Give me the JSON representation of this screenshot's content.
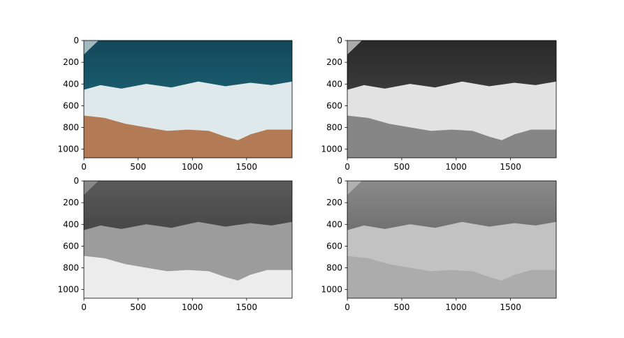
{
  "chart_data": [
    {
      "type": "image",
      "xlim": [
        -0.5,
        1919.5
      ],
      "ylim": [
        1079.5,
        -0.5
      ],
      "xticks": [
        0,
        500,
        1000,
        1500
      ],
      "yticks": [
        0,
        200,
        400,
        600,
        800,
        1000
      ],
      "colors": [
        "#14485a",
        "#1f7585",
        "#dfe9ec",
        "#b27b56"
      ]
    },
    {
      "type": "image",
      "xlim": [
        -0.5,
        1919.5
      ],
      "ylim": [
        1079.5,
        -0.5
      ],
      "xticks": [
        0,
        500,
        1000,
        1500
      ],
      "yticks": [
        0,
        200,
        400,
        600,
        800,
        1000
      ],
      "colors": [
        "#2a2a2a",
        "#505050",
        "#e2e2e2",
        "#868686"
      ]
    },
    {
      "type": "image",
      "xlim": [
        -0.5,
        1919.5
      ],
      "ylim": [
        1079.5,
        -0.5
      ],
      "xticks": [
        0,
        500,
        1000,
        1500
      ],
      "yticks": [
        0,
        200,
        400,
        600,
        800,
        1000
      ],
      "colors": [
        "#5a5a5a",
        "#2e2e2e",
        "#9c9c9c",
        "#ececec"
      ]
    },
    {
      "type": "image",
      "xlim": [
        -0.5,
        1919.5
      ],
      "ylim": [
        1079.5,
        -0.5
      ],
      "xticks": [
        0,
        500,
        1000,
        1500
      ],
      "yticks": [
        0,
        200,
        400,
        600,
        800,
        1000
      ],
      "colors": [
        "#8a8a8a",
        "#4e4e4e",
        "#c2c2c2",
        "#acacac"
      ]
    }
  ]
}
